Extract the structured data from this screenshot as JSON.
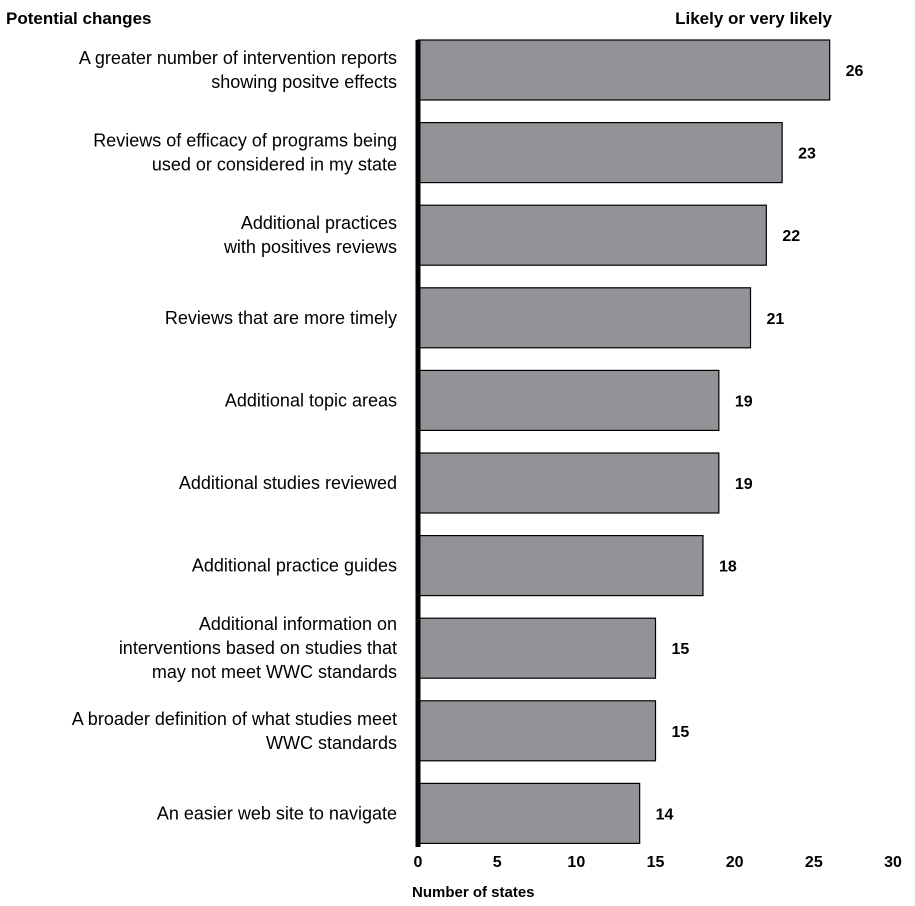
{
  "chart_data": {
    "type": "bar",
    "orientation": "horizontal",
    "title_left": "Potential changes",
    "title_right": "Likely or very likely",
    "xlabel": "Number of states",
    "ylabel": "",
    "xlim": [
      0,
      30
    ],
    "xticks": [
      "0",
      "5",
      "10",
      "15",
      "20",
      "25",
      "30"
    ],
    "grid": false,
    "bar_color": "#929397",
    "categories": [
      [
        "A greater number of intervention reports",
        "showing positve effects"
      ],
      [
        "Reviews of efficacy of programs being",
        "used or considered in my state"
      ],
      [
        "Additional practices",
        "with positives reviews"
      ],
      [
        "Reviews that are more timely"
      ],
      [
        "Additional topic areas"
      ],
      [
        "Additional studies reviewed"
      ],
      [
        "Additional practice guides"
      ],
      [
        "Additional information on",
        "interventions based on studies that",
        "may not meet WWC standards"
      ],
      [
        "A broader definition of what studies meet",
        "WWC standards"
      ],
      [
        "An easier web site to navigate"
      ]
    ],
    "values": [
      26,
      23,
      22,
      21,
      19,
      19,
      18,
      15,
      15,
      14
    ],
    "value_labels": [
      "26",
      "23",
      "22",
      "21",
      "19",
      "19",
      "18",
      "15",
      "15",
      "14"
    ]
  }
}
